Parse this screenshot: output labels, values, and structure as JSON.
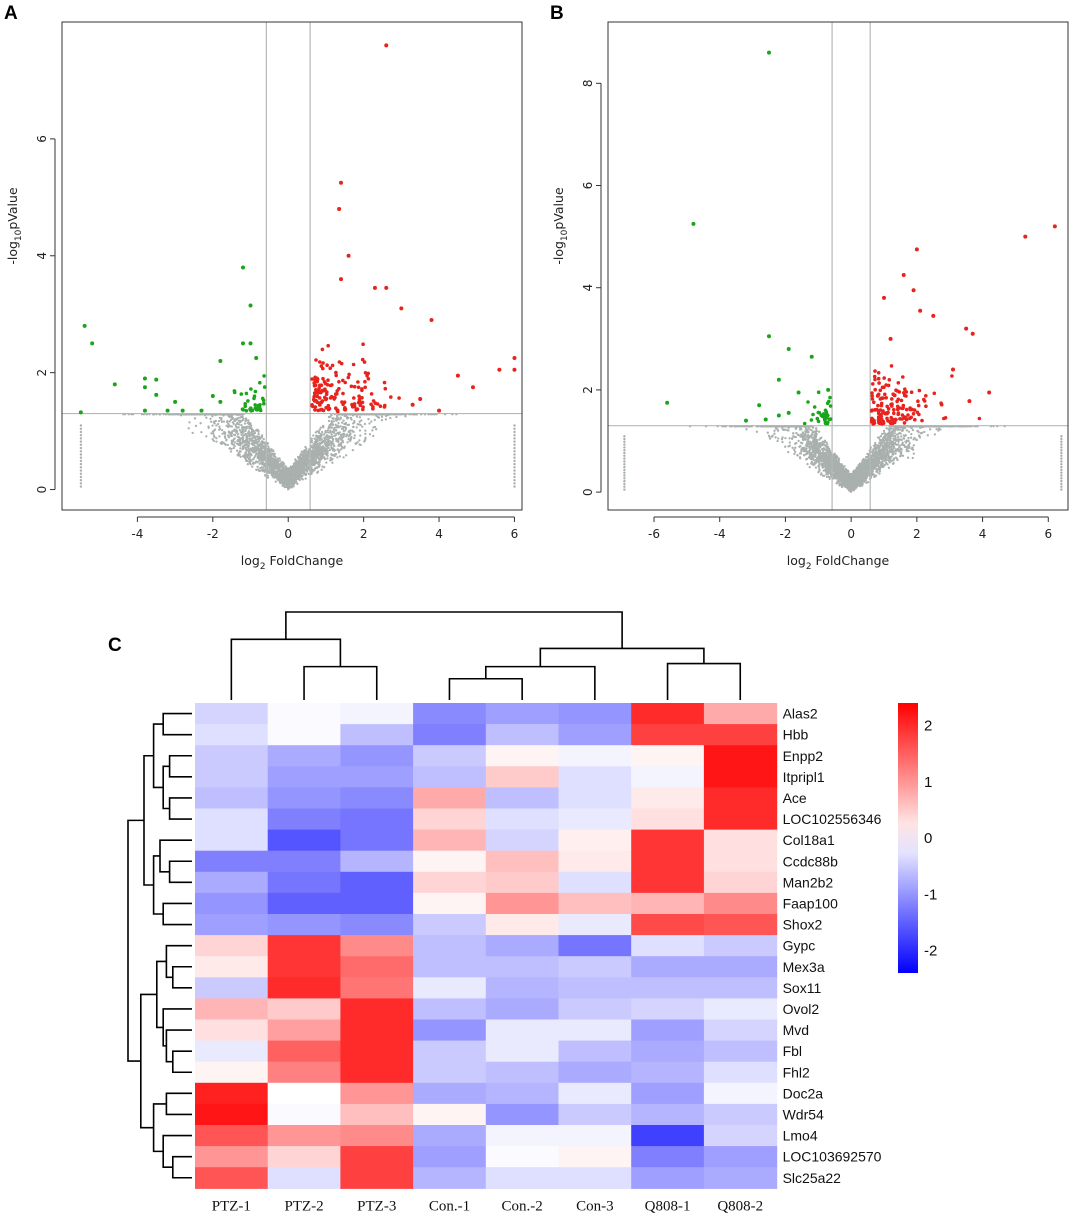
{
  "panels": {
    "a": "A",
    "b": "B",
    "c": "C"
  },
  "colors": {
    "up": "#e8231d",
    "down": "#1aa51a",
    "ns": "#a9b0ae",
    "line": "#b4b9b8",
    "dendro": "#000000"
  },
  "chart_data": [
    {
      "type": "scatter",
      "panel": "A",
      "xlabel_main": "log",
      "xlabel_sub": "2",
      "xlabel_rest": " FoldChange",
      "ylabel_main": "-log",
      "ylabel_sub": "10",
      "ylabel_rest": "pValue",
      "xlim": [
        -6.0,
        6.2
      ],
      "ylim": [
        -0.35,
        8.0
      ],
      "xticks": [
        -4,
        -2,
        0,
        2,
        4,
        6
      ],
      "yticks": [
        0,
        2,
        4,
        6
      ],
      "fc_threshold": [
        -0.58,
        0.58
      ],
      "p_threshold": 1.3,
      "seed": 11,
      "ns_count": 2600,
      "series": [
        {
          "name": "up",
          "points": [
            [
              2.6,
              7.6
            ],
            [
              1.4,
              5.25
            ],
            [
              1.35,
              4.8
            ],
            [
              1.6,
              4.0
            ],
            [
              2.3,
              3.45
            ],
            [
              2.6,
              3.45
            ],
            [
              1.4,
              3.6
            ],
            [
              3.0,
              3.1
            ],
            [
              3.8,
              2.9
            ],
            [
              6.0,
              2.25
            ],
            [
              6.0,
              2.05
            ],
            [
              5.6,
              2.05
            ],
            [
              4.9,
              1.75
            ],
            [
              4.5,
              1.95
            ],
            [
              4.0,
              1.35
            ],
            [
              3.3,
              1.45
            ],
            [
              3.5,
              1.55
            ]
          ]
        },
        {
          "name": "down",
          "points": [
            [
              -1.2,
              3.8
            ],
            [
              -1.0,
              3.15
            ],
            [
              -5.4,
              2.8
            ],
            [
              -5.2,
              2.5
            ],
            [
              -1.2,
              2.5
            ],
            [
              -1.0,
              2.5
            ],
            [
              -1.8,
              2.2
            ],
            [
              -0.85,
              2.25
            ],
            [
              -3.8,
              1.9
            ],
            [
              -3.5,
              1.88
            ],
            [
              -3.8,
              1.75
            ],
            [
              -4.6,
              1.8
            ],
            [
              -3.5,
              1.62
            ],
            [
              -3.0,
              1.5
            ],
            [
              -3.2,
              1.35
            ],
            [
              -3.8,
              1.35
            ],
            [
              -2.8,
              1.35
            ],
            [
              -5.5,
              1.32
            ],
            [
              -2.3,
              1.35
            ],
            [
              -2.0,
              1.6
            ],
            [
              -1.8,
              1.5
            ]
          ]
        }
      ]
    },
    {
      "type": "scatter",
      "panel": "B",
      "xlabel_main": "log",
      "xlabel_sub": "2",
      "xlabel_rest": " FoldChange",
      "ylabel_main": "-log",
      "ylabel_sub": "10",
      "ylabel_rest": "pValue",
      "xlim": [
        -7.4,
        6.6
      ],
      "ylim": [
        -0.35,
        9.2
      ],
      "xticks": [
        -6,
        -4,
        -2,
        0,
        2,
        4,
        6
      ],
      "yticks": [
        0,
        2,
        4,
        6,
        8
      ],
      "fc_threshold": [
        -0.58,
        0.58
      ],
      "p_threshold": 1.3,
      "seed": 23,
      "ns_count": 2600,
      "series": [
        {
          "name": "up",
          "points": [
            [
              6.2,
              5.2
            ],
            [
              5.3,
              5.0
            ],
            [
              2.0,
              4.75
            ],
            [
              1.6,
              4.25
            ],
            [
              1.9,
              3.95
            ],
            [
              1.0,
              3.8
            ],
            [
              2.5,
              3.45
            ],
            [
              2.1,
              3.55
            ],
            [
              3.5,
              3.2
            ],
            [
              3.7,
              3.1
            ],
            [
              1.2,
              3.0
            ],
            [
              3.1,
              2.4
            ],
            [
              4.2,
              1.95
            ],
            [
              3.6,
              1.78
            ]
          ]
        },
        {
          "name": "down",
          "points": [
            [
              -2.5,
              8.6
            ],
            [
              -4.8,
              5.25
            ],
            [
              -2.5,
              3.05
            ],
            [
              -1.9,
              2.8
            ],
            [
              -1.2,
              2.65
            ],
            [
              -2.2,
              2.2
            ],
            [
              -1.6,
              1.95
            ],
            [
              -0.7,
              2.0
            ],
            [
              -5.6,
              1.75
            ],
            [
              -2.8,
              1.7
            ],
            [
              -2.2,
              1.5
            ],
            [
              -2.6,
              1.42
            ],
            [
              -3.2,
              1.4
            ],
            [
              -1.9,
              1.55
            ]
          ]
        }
      ]
    },
    {
      "type": "heatmap",
      "panel": "C",
      "columns": [
        "PTZ-1",
        "PTZ-2",
        "PTZ-3",
        "Con.-1",
        "Con.-2",
        "Con-3",
        "Q808-1",
        "Q808-2"
      ],
      "rows": [
        "Alas2",
        "Hbb",
        "Enpp2",
        "Itpripl1",
        "Ace",
        "LOC102556346",
        "Col18a1",
        "Ccdc88b",
        "Man2b2",
        "Faap100",
        "Shox2",
        "Gypc",
        "Mex3a",
        "Sox11",
        "Ovol2",
        "Mvd",
        "Fbl",
        "Fhl2",
        "Doc2a",
        "Wdr54",
        "Lmo4",
        "LOC103692570",
        "Slc25a22"
      ],
      "values": [
        [
          -0.4,
          -0.05,
          -0.1,
          -1.1,
          -0.9,
          -1.0,
          2.0,
          0.8
        ],
        [
          -0.3,
          -0.05,
          -0.6,
          -1.2,
          -0.6,
          -0.9,
          1.8,
          1.8
        ],
        [
          -0.5,
          -0.8,
          -1.0,
          -0.5,
          0.1,
          -0.1,
          0.1,
          2.2
        ],
        [
          -0.5,
          -0.9,
          -0.9,
          -0.6,
          0.5,
          -0.3,
          -0.1,
          2.2
        ],
        [
          -0.6,
          -1.0,
          -1.1,
          0.8,
          -0.6,
          -0.3,
          0.2,
          2.0
        ],
        [
          -0.3,
          -1.2,
          -1.3,
          0.4,
          -0.3,
          -0.2,
          0.3,
          2.0
        ],
        [
          -0.3,
          -1.6,
          -1.3,
          0.7,
          -0.4,
          0.15,
          1.9,
          0.3
        ],
        [
          -1.2,
          -1.2,
          -0.7,
          0.1,
          0.6,
          0.2,
          1.9,
          0.3
        ],
        [
          -0.8,
          -1.3,
          -1.5,
          0.4,
          0.5,
          -0.3,
          1.9,
          0.4
        ],
        [
          -1.0,
          -1.5,
          -1.5,
          0.1,
          1.0,
          0.6,
          0.7,
          1.1
        ],
        [
          -0.9,
          -1.0,
          -1.1,
          -0.5,
          0.2,
          -0.2,
          1.7,
          1.6
        ],
        [
          0.4,
          1.9,
          1.1,
          -0.6,
          -0.8,
          -1.3,
          -0.3,
          -0.5
        ],
        [
          0.2,
          1.9,
          1.4,
          -0.6,
          -0.6,
          -0.5,
          -0.8,
          -0.8
        ],
        [
          -0.5,
          2.0,
          1.3,
          -0.2,
          -0.7,
          -0.6,
          -0.6,
          -0.6
        ],
        [
          0.7,
          0.5,
          2.0,
          -0.6,
          -0.8,
          -0.5,
          -0.4,
          -0.2
        ],
        [
          0.3,
          0.9,
          2.0,
          -1.0,
          -0.2,
          -0.2,
          -0.9,
          -0.4
        ],
        [
          -0.2,
          1.5,
          2.0,
          -0.5,
          -0.2,
          -0.6,
          -0.8,
          -0.6
        ],
        [
          0.1,
          1.2,
          2.0,
          -0.5,
          -0.6,
          -0.8,
          -0.7,
          -0.3
        ],
        [
          2.1,
          0.0,
          1.0,
          -0.8,
          -0.7,
          -0.2,
          -0.9,
          -0.1
        ],
        [
          2.2,
          -0.05,
          0.6,
          0.1,
          -1.0,
          -0.5,
          -0.7,
          -0.5
        ],
        [
          1.6,
          1.0,
          1.1,
          -0.8,
          -0.1,
          -0.1,
          -1.8,
          -0.4
        ],
        [
          1.0,
          0.4,
          1.8,
          -0.9,
          -0.05,
          0.1,
          -1.2,
          -0.9
        ],
        [
          1.6,
          -0.3,
          1.8,
          -0.7,
          -0.3,
          -0.3,
          -0.9,
          -0.8
        ]
      ],
      "colorbar": {
        "min": -2.4,
        "max": 2.4,
        "ticks": [
          2,
          1,
          0,
          -1,
          -2
        ],
        "tick_labels": [
          "2",
          "1",
          "0",
          "-1",
          "-2"
        ]
      },
      "col_dendrogram": [
        [
          1,
          2,
          0.55,
          "c8"
        ],
        [
          0,
          8,
          1.0,
          "c9"
        ],
        [
          3,
          4,
          0.35,
          "c10"
        ],
        [
          5,
          10,
          0.55,
          "c11"
        ],
        [
          6,
          7,
          0.6,
          "c12"
        ],
        [
          11,
          12,
          0.85,
          "c13"
        ],
        [
          9,
          13,
          1.45,
          "c14"
        ]
      ],
      "row_dendrogram": [
        [
          0,
          1,
          0.45,
          "r23"
        ],
        [
          2,
          3,
          0.35,
          "r24"
        ],
        [
          4,
          5,
          0.35,
          "r25"
        ],
        [
          24,
          25,
          0.45,
          "r26"
        ],
        [
          23,
          26,
          0.6,
          "r27"
        ],
        [
          7,
          8,
          0.35,
          "r28"
        ],
        [
          6,
          28,
          0.5,
          "r29"
        ],
        [
          9,
          10,
          0.45,
          "r30"
        ],
        [
          29,
          30,
          0.6,
          "r31"
        ],
        [
          27,
          31,
          0.75,
          "r32"
        ],
        [
          12,
          13,
          0.3,
          "r33"
        ],
        [
          11,
          33,
          0.4,
          "r34"
        ],
        [
          16,
          17,
          0.3,
          "r35"
        ],
        [
          15,
          35,
          0.4,
          "r36"
        ],
        [
          14,
          36,
          0.45,
          "r37"
        ],
        [
          34,
          37,
          0.55,
          "r38"
        ],
        [
          18,
          19,
          0.4,
          "r39"
        ],
        [
          21,
          22,
          0.3,
          "r40"
        ],
        [
          20,
          40,
          0.45,
          "r41"
        ],
        [
          39,
          41,
          0.6,
          "r42"
        ],
        [
          38,
          42,
          0.8,
          "r43"
        ],
        [
          32,
          43,
          1.0,
          "r44"
        ]
      ]
    }
  ]
}
